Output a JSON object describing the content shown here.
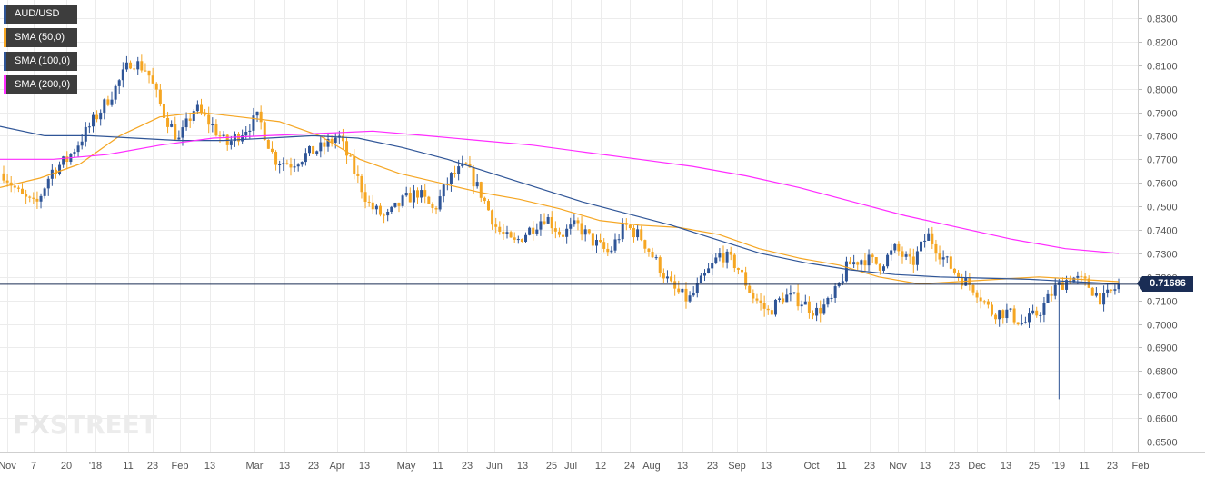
{
  "legend": [
    {
      "label": "AUD/USD",
      "color": "#2f5597"
    },
    {
      "label": "SMA (50,0)",
      "color": "#f5a623"
    },
    {
      "label": "SMA (100,0)",
      "color": "#2f5597"
    },
    {
      "label": "SMA (200,0)",
      "color": "#ff2dff"
    }
  ],
  "logo": {
    "fx": "FX",
    "street": "STREET"
  },
  "price_label": "0.71686",
  "chart_data": {
    "type": "candlestick",
    "series_name": "AUD/USD",
    "ylim": [
      0.646,
      0.834
    ],
    "y_ticks": [
      "0.8300",
      "0.8200",
      "0.8100",
      "0.8000",
      "0.7900",
      "0.7800",
      "0.7700",
      "0.7600",
      "0.7500",
      "0.7400",
      "0.7300",
      "0.7200",
      "0.7100",
      "0.7000",
      "0.6900",
      "0.6800",
      "0.6700",
      "0.6600",
      "0.6500"
    ],
    "x_ticks": [
      "Nov",
      "7",
      "20",
      "'18",
      "11",
      "23",
      "Feb",
      "13",
      "Mar",
      "13",
      "23",
      "Apr",
      "13",
      "May",
      "11",
      "23",
      "Jun",
      "13",
      "25",
      "Jul",
      "12",
      "24",
      "Aug",
      "13",
      "23",
      "Sep",
      "13",
      "Oct",
      "11",
      "23",
      "Nov",
      "13",
      "23",
      "Dec",
      "13",
      "25",
      "'19",
      "11",
      "23",
      "Feb"
    ],
    "current_price": 0.71686,
    "grid": true,
    "colors": {
      "up": "#2f5597",
      "down": "#f5a623",
      "sma50": "#f5a623",
      "sma100": "#2f5597",
      "sma200": "#ff2dff"
    },
    "price_path": [
      0.764,
      0.755,
      0.75,
      0.765,
      0.77,
      0.78,
      0.79,
      0.8,
      0.812,
      0.808,
      0.79,
      0.778,
      0.792,
      0.785,
      0.776,
      0.782,
      0.788,
      0.77,
      0.768,
      0.772,
      0.775,
      0.78,
      0.765,
      0.75,
      0.745,
      0.752,
      0.756,
      0.748,
      0.762,
      0.767,
      0.755,
      0.74,
      0.734,
      0.74,
      0.746,
      0.738,
      0.742,
      0.735,
      0.73,
      0.742,
      0.737,
      0.726,
      0.715,
      0.71,
      0.72,
      0.73,
      0.725,
      0.712,
      0.705,
      0.712,
      0.71,
      0.705,
      0.71,
      0.725,
      0.728,
      0.725,
      0.732,
      0.725,
      0.738,
      0.728,
      0.72,
      0.715,
      0.705,
      0.705,
      0.7,
      0.705,
      0.715,
      0.72,
      0.717,
      0.71,
      0.7165
    ],
    "sma50": [
      0.758,
      0.762,
      0.768,
      0.78,
      0.788,
      0.79,
      0.788,
      0.786,
      0.78,
      0.77,
      0.764,
      0.76,
      0.756,
      0.753,
      0.749,
      0.744,
      0.742,
      0.741,
      0.738,
      0.732,
      0.728,
      0.725,
      0.72,
      0.717,
      0.718,
      0.719,
      0.72,
      0.719,
      0.718
    ],
    "sma100": [
      0.784,
      0.78,
      0.78,
      0.779,
      0.778,
      0.778,
      0.779,
      0.78,
      0.779,
      0.775,
      0.77,
      0.764,
      0.758,
      0.752,
      0.747,
      0.742,
      0.736,
      0.73,
      0.726,
      0.723,
      0.721,
      0.72,
      0.7195,
      0.719,
      0.718,
      0.717
    ],
    "sma200": [
      0.77,
      0.77,
      0.772,
      0.776,
      0.779,
      0.78,
      0.781,
      0.782,
      0.78,
      0.778,
      0.776,
      0.773,
      0.77,
      0.767,
      0.763,
      0.758,
      0.752,
      0.746,
      0.741,
      0.736,
      0.732,
      0.73
    ]
  }
}
